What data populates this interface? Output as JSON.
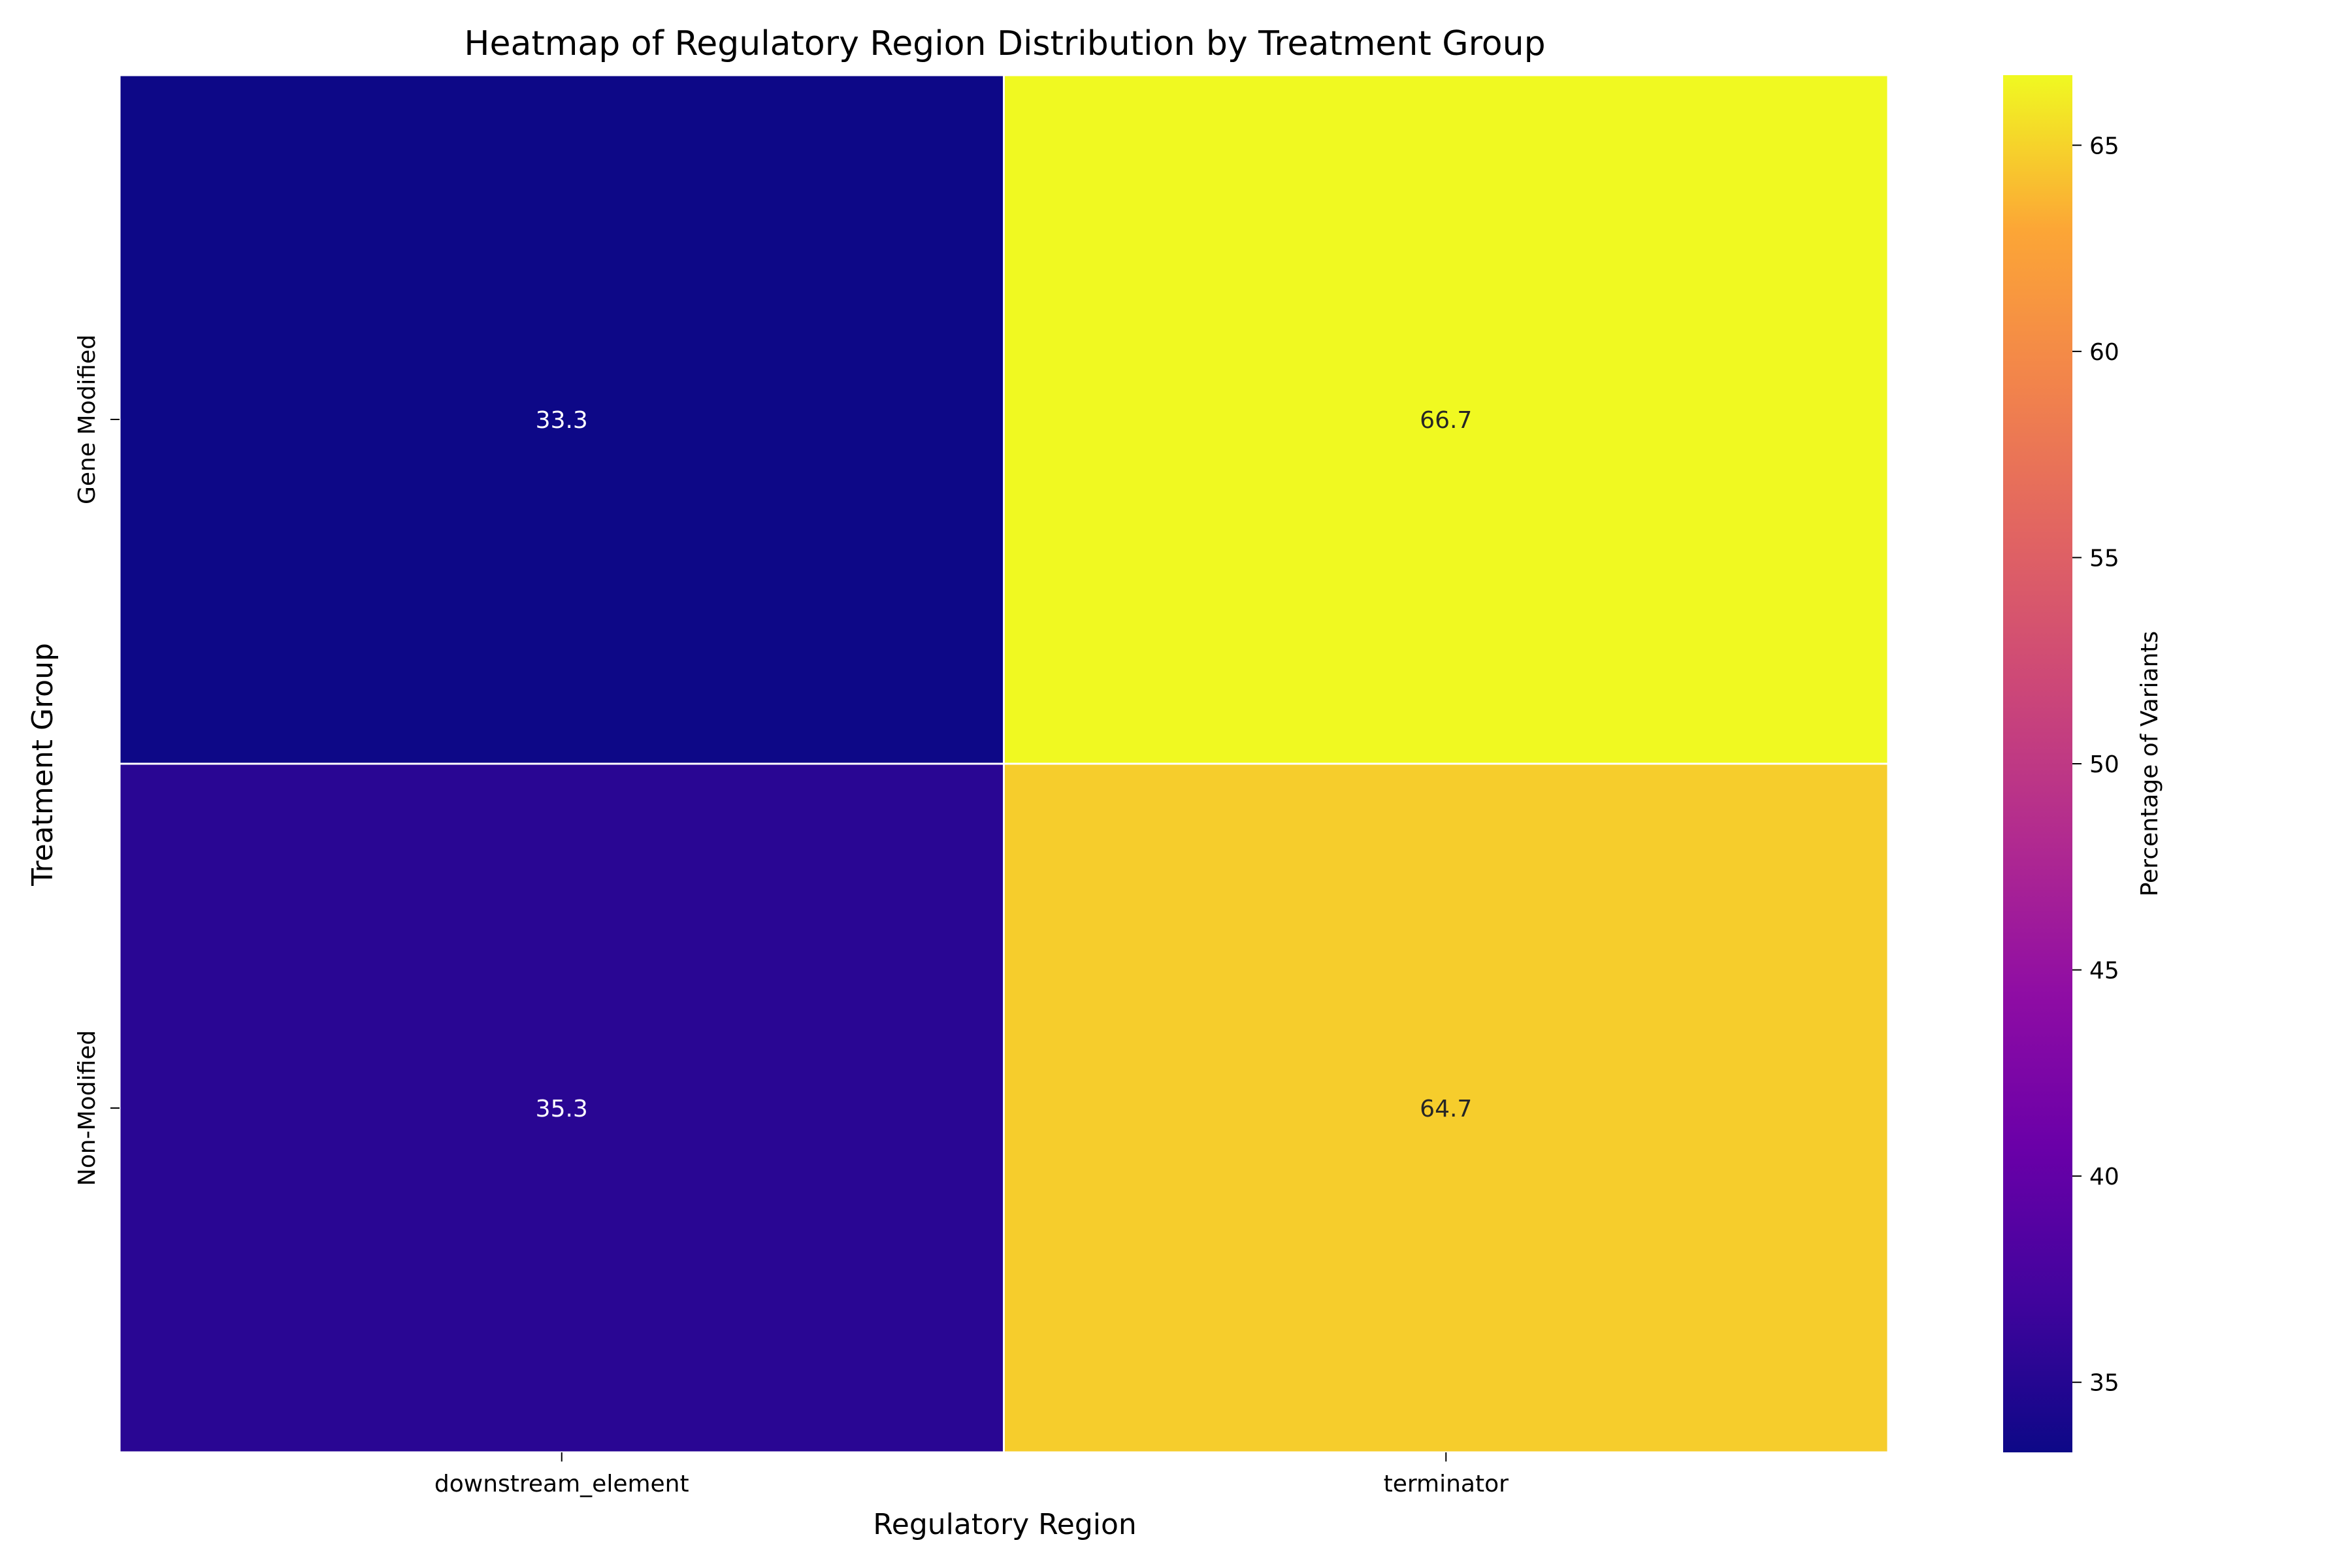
{
  "chart_data": {
    "type": "heatmap",
    "title": "Heatmap of Regulatory Region Distribution by Treatment Group",
    "xlabel": "Regulatory Region",
    "ylabel": "Treatment Group",
    "x_categories": [
      "downstream_element",
      "terminator"
    ],
    "y_categories": [
      "Gene Modified",
      "Non-Modified"
    ],
    "values": [
      [
        33.3,
        66.7
      ],
      [
        35.3,
        64.7
      ]
    ],
    "cell_labels": [
      [
        "33.3",
        "66.7"
      ],
      [
        "35.3",
        "64.7"
      ]
    ],
    "colormap": "plasma",
    "colorbar": {
      "label": "Percentage of Variants",
      "range": [
        33.3,
        66.7
      ],
      "ticks": [
        35,
        40,
        45,
        50,
        55,
        60,
        65
      ],
      "tick_labels": [
        "35",
        "40",
        "45",
        "50",
        "55",
        "60",
        "65"
      ]
    },
    "grid": false,
    "legend": "colorbar-right"
  }
}
